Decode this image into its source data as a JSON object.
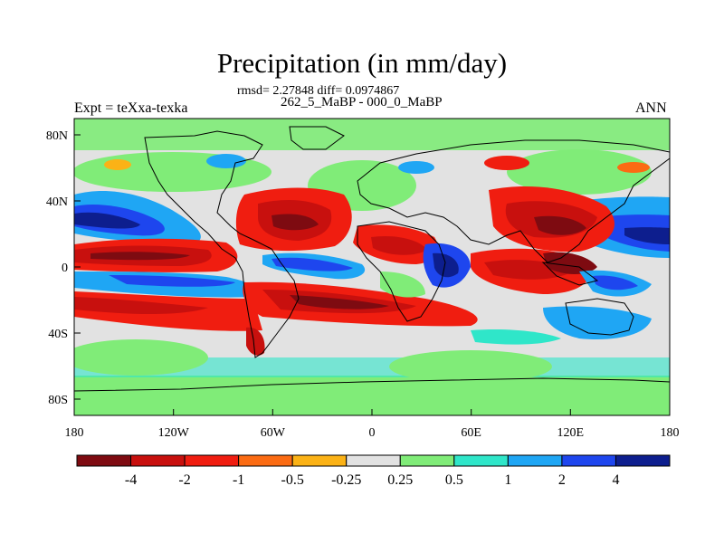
{
  "title": "Precipitation (in mm/day)",
  "stats": "rmsd= 2.27848 diff= 0.0974867",
  "comparison": "262_5_MaBP - 000_0_MaBP",
  "expt_label": "Expt = teXxa-texka",
  "season": "ANN",
  "map": {
    "projection": "cylindrical equidistant",
    "lon_range": [
      -180,
      180
    ],
    "lat_range": [
      -90,
      90
    ],
    "x_tick_labels": [
      "180",
      "120W",
      "60W",
      "0",
      "60E",
      "120E",
      "180"
    ],
    "y_tick_labels": [
      "80N",
      "40N",
      "0",
      "40S",
      "80S"
    ]
  },
  "colorbar": {
    "labels": [
      "-4",
      "-2",
      "-1",
      "-0.5",
      "-0.25",
      "0.25",
      "0.5",
      "1",
      "2",
      "4"
    ],
    "colors": [
      "#7e0b11",
      "#c8100e",
      "#f01d10",
      "#fb6b13",
      "#fbb216",
      "#e2e2e2",
      "#80ec78",
      "#2fe6c9",
      "#1fa6f4",
      "#1e46ee",
      "#0d1e8e"
    ]
  }
}
